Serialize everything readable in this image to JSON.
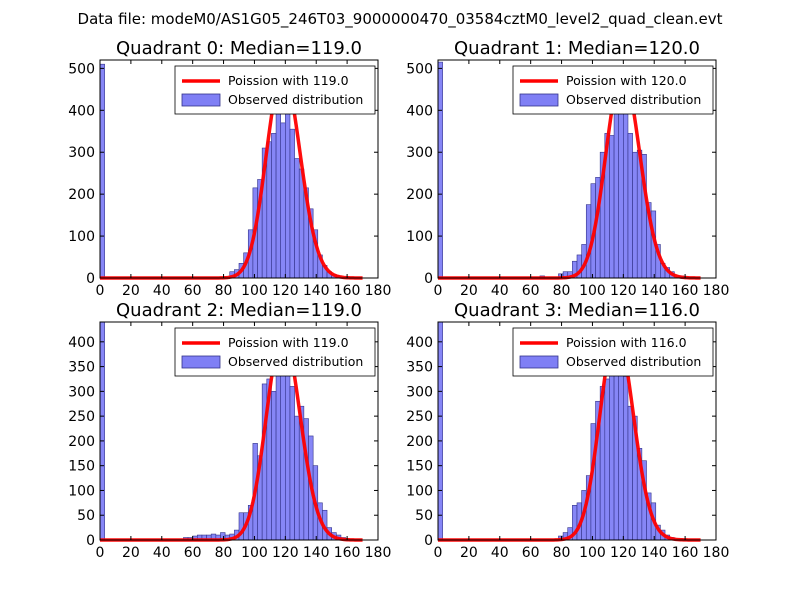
{
  "suptitle": "Data file: modeM0/AS1G05_246T03_9000000470_03584cztM0_level2_quad_clean.evt",
  "colors": {
    "bars": "#7f7ff5",
    "bar_edge": "#33338a",
    "fit": "#ff0000",
    "background": "#ffffff"
  },
  "chart_data": [
    {
      "type": "bar",
      "title": "Quadrant 0: Median=119.0",
      "xlim": [
        0,
        180
      ],
      "ylim": [
        0,
        520
      ],
      "xticks": [
        0,
        20,
        40,
        60,
        80,
        100,
        120,
        140,
        160,
        180
      ],
      "yticks": [
        0,
        100,
        200,
        300,
        400,
        500
      ],
      "legend": [
        "Poission with 119.0",
        "Observed distribution"
      ],
      "legend_position": "upper-right",
      "bin_width": 3,
      "bins": [
        {
          "x": 0,
          "y": 510
        },
        {
          "x": 84,
          "y": 15
        },
        {
          "x": 87,
          "y": 20
        },
        {
          "x": 90,
          "y": 35
        },
        {
          "x": 93,
          "y": 60
        },
        {
          "x": 96,
          "y": 115
        },
        {
          "x": 99,
          "y": 215
        },
        {
          "x": 102,
          "y": 235
        },
        {
          "x": 105,
          "y": 310
        },
        {
          "x": 108,
          "y": 325
        },
        {
          "x": 111,
          "y": 345
        },
        {
          "x": 114,
          "y": 395
        },
        {
          "x": 117,
          "y": 370
        },
        {
          "x": 120,
          "y": 395
        },
        {
          "x": 123,
          "y": 355
        },
        {
          "x": 126,
          "y": 285
        },
        {
          "x": 129,
          "y": 260
        },
        {
          "x": 132,
          "y": 215
        },
        {
          "x": 135,
          "y": 165
        },
        {
          "x": 138,
          "y": 115
        },
        {
          "x": 141,
          "y": 55
        },
        {
          "x": 144,
          "y": 30
        },
        {
          "x": 147,
          "y": 15
        },
        {
          "x": 150,
          "y": 8
        },
        {
          "x": 153,
          "y": 5
        }
      ],
      "fit": {
        "mu": 119.0,
        "scale": 490
      }
    },
    {
      "type": "bar",
      "title": "Quadrant 1: Median=120.0",
      "xlim": [
        0,
        180
      ],
      "ylim": [
        0,
        520
      ],
      "xticks": [
        0,
        20,
        40,
        60,
        80,
        100,
        120,
        140,
        160,
        180
      ],
      "yticks": [
        0,
        100,
        200,
        300,
        400,
        500
      ],
      "legend": [
        "Poission with 120.0",
        "Observed distribution"
      ],
      "legend_position": "upper-right",
      "bin_width": 3,
      "bins": [
        {
          "x": 0,
          "y": 515
        },
        {
          "x": 66,
          "y": 5
        },
        {
          "x": 78,
          "y": 10
        },
        {
          "x": 81,
          "y": 15
        },
        {
          "x": 84,
          "y": 15
        },
        {
          "x": 87,
          "y": 40
        },
        {
          "x": 90,
          "y": 55
        },
        {
          "x": 93,
          "y": 80
        },
        {
          "x": 96,
          "y": 175
        },
        {
          "x": 99,
          "y": 225
        },
        {
          "x": 102,
          "y": 240
        },
        {
          "x": 105,
          "y": 300
        },
        {
          "x": 108,
          "y": 345
        },
        {
          "x": 111,
          "y": 340
        },
        {
          "x": 114,
          "y": 435
        },
        {
          "x": 117,
          "y": 495
        },
        {
          "x": 120,
          "y": 405
        },
        {
          "x": 123,
          "y": 345
        },
        {
          "x": 126,
          "y": 300
        },
        {
          "x": 129,
          "y": 305
        },
        {
          "x": 132,
          "y": 295
        },
        {
          "x": 135,
          "y": 180
        },
        {
          "x": 138,
          "y": 160
        },
        {
          "x": 141,
          "y": 80
        },
        {
          "x": 144,
          "y": 35
        },
        {
          "x": 147,
          "y": 25
        },
        {
          "x": 150,
          "y": 15
        },
        {
          "x": 156,
          "y": 5
        }
      ],
      "fit": {
        "mu": 120.0,
        "scale": 490
      }
    },
    {
      "type": "bar",
      "title": "Quadrant 2: Median=119.0",
      "xlim": [
        0,
        180
      ],
      "ylim": [
        0,
        440
      ],
      "xticks": [
        0,
        20,
        40,
        60,
        80,
        100,
        120,
        140,
        160,
        180
      ],
      "yticks": [
        0,
        50,
        100,
        150,
        200,
        250,
        300,
        350,
        400
      ],
      "legend": [
        "Poission with 119.0",
        "Observed distribution"
      ],
      "legend_position": "upper-right",
      "bin_width": 3,
      "bins": [
        {
          "x": 0,
          "y": 440
        },
        {
          "x": 54,
          "y": 5
        },
        {
          "x": 57,
          "y": 5
        },
        {
          "x": 60,
          "y": 8
        },
        {
          "x": 63,
          "y": 10
        },
        {
          "x": 66,
          "y": 10
        },
        {
          "x": 69,
          "y": 10
        },
        {
          "x": 72,
          "y": 12
        },
        {
          "x": 75,
          "y": 10
        },
        {
          "x": 78,
          "y": 15
        },
        {
          "x": 81,
          "y": 10
        },
        {
          "x": 84,
          "y": 12
        },
        {
          "x": 87,
          "y": 20
        },
        {
          "x": 90,
          "y": 55
        },
        {
          "x": 93,
          "y": 55
        },
        {
          "x": 96,
          "y": 70
        },
        {
          "x": 99,
          "y": 195
        },
        {
          "x": 102,
          "y": 170
        },
        {
          "x": 105,
          "y": 315
        },
        {
          "x": 108,
          "y": 325
        },
        {
          "x": 111,
          "y": 300
        },
        {
          "x": 114,
          "y": 345
        },
        {
          "x": 117,
          "y": 395
        },
        {
          "x": 120,
          "y": 410
        },
        {
          "x": 123,
          "y": 310
        },
        {
          "x": 126,
          "y": 250
        },
        {
          "x": 129,
          "y": 270
        },
        {
          "x": 132,
          "y": 245
        },
        {
          "x": 135,
          "y": 210
        },
        {
          "x": 138,
          "y": 150
        },
        {
          "x": 141,
          "y": 75
        },
        {
          "x": 144,
          "y": 60
        },
        {
          "x": 147,
          "y": 25
        },
        {
          "x": 150,
          "y": 15
        },
        {
          "x": 153,
          "y": 10
        },
        {
          "x": 156,
          "y": 5
        }
      ],
      "fit": {
        "mu": 119.0,
        "scale": 415
      }
    },
    {
      "type": "bar",
      "title": "Quadrant 3: Median=116.0",
      "xlim": [
        0,
        180
      ],
      "ylim": [
        0,
        440
      ],
      "xticks": [
        0,
        20,
        40,
        60,
        80,
        100,
        120,
        140,
        160,
        180
      ],
      "yticks": [
        0,
        50,
        100,
        150,
        200,
        250,
        300,
        350,
        400
      ],
      "legend": [
        "Poission with 116.0",
        "Observed distribution"
      ],
      "legend_position": "upper-right",
      "bin_width": 3,
      "bins": [
        {
          "x": 0,
          "y": 440
        },
        {
          "x": 78,
          "y": 8
        },
        {
          "x": 81,
          "y": 15
        },
        {
          "x": 84,
          "y": 25
        },
        {
          "x": 87,
          "y": 70
        },
        {
          "x": 90,
          "y": 75
        },
        {
          "x": 93,
          "y": 100
        },
        {
          "x": 96,
          "y": 130
        },
        {
          "x": 99,
          "y": 235
        },
        {
          "x": 102,
          "y": 280
        },
        {
          "x": 105,
          "y": 310
        },
        {
          "x": 108,
          "y": 325
        },
        {
          "x": 111,
          "y": 340
        },
        {
          "x": 114,
          "y": 420
        },
        {
          "x": 117,
          "y": 355
        },
        {
          "x": 120,
          "y": 330
        },
        {
          "x": 123,
          "y": 270
        },
        {
          "x": 126,
          "y": 250
        },
        {
          "x": 129,
          "y": 185
        },
        {
          "x": 132,
          "y": 160
        },
        {
          "x": 135,
          "y": 95
        },
        {
          "x": 138,
          "y": 75
        },
        {
          "x": 141,
          "y": 30
        },
        {
          "x": 144,
          "y": 20
        },
        {
          "x": 147,
          "y": 10
        },
        {
          "x": 150,
          "y": 5
        }
      ],
      "fit": {
        "mu": 116.0,
        "scale": 420
      }
    }
  ]
}
